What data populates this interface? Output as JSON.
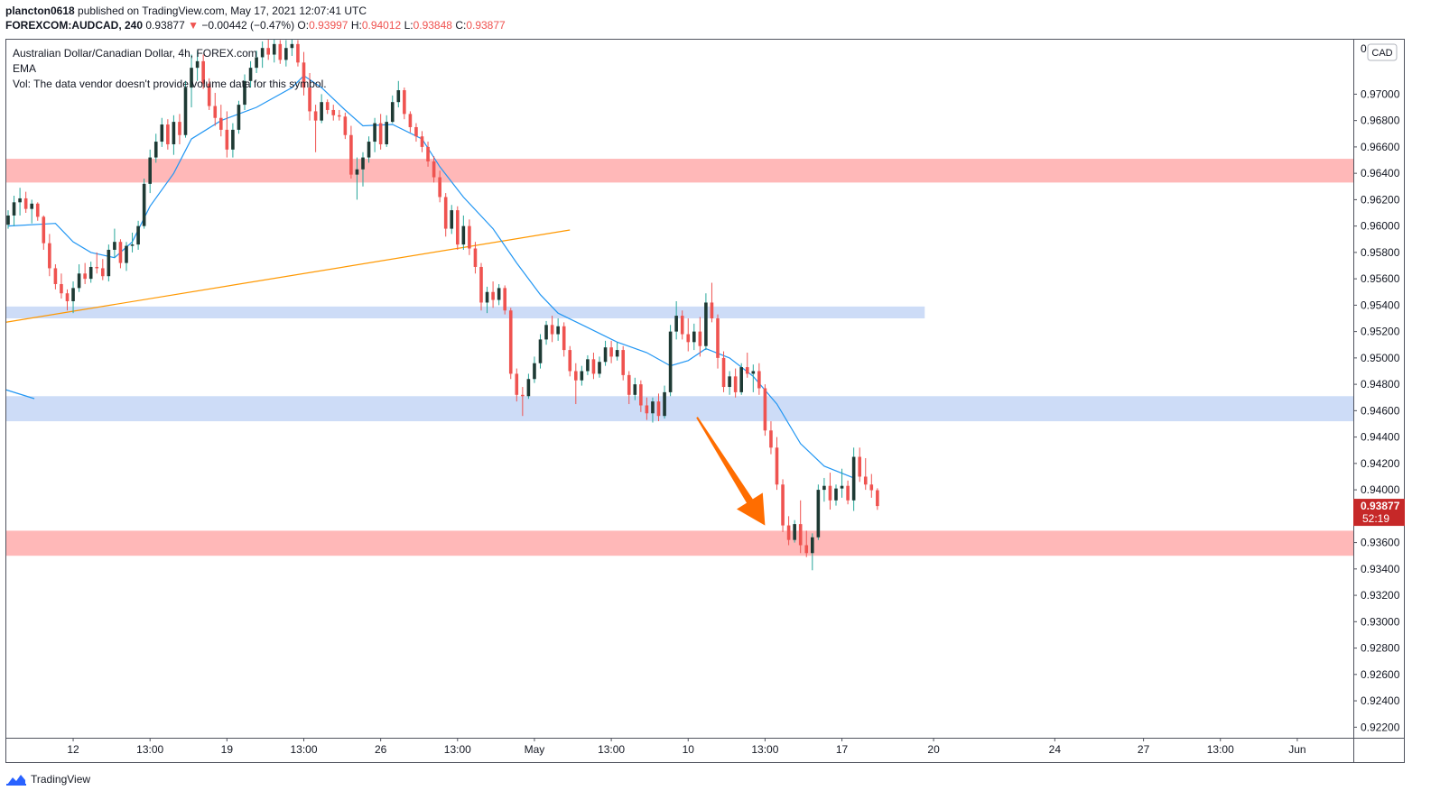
{
  "header": {
    "author": "plancton0618",
    "published_text": "published on TradingView.com, May 17, 2021 12:07:41 UTC",
    "symbol": "FOREXCOM:AUDCAD, 240",
    "last": "0.93877",
    "arrow": "▼",
    "change": "−0.00442 (−0.47%)",
    "o_label": "O:",
    "o_value": "0.93997",
    "h_label": "H:",
    "h_value": "0.94012",
    "l_label": "L:",
    "l_value": "0.93848",
    "c_label": "C:",
    "c_value": "0.93877"
  },
  "legend": {
    "title": "Australian Dollar/Canadian Dollar, 4h, FOREX.com",
    "ema": "EMA",
    "vol": "Vol: The data vendor doesn't provide volume data for this symbol."
  },
  "footer": {
    "brand": "TradingView"
  },
  "colors": {
    "up": "#26a69a",
    "down": "#ef5350",
    "wick_up": "#1e3a34",
    "ema": "#2196f3",
    "trendline": "#ff9800",
    "arrow": "#ff6d00",
    "red_zone": "#ffb8b8",
    "blue_zone": "#cddcf7",
    "price_badge": "#c62828"
  },
  "chart_data": {
    "type": "candlestick",
    "title": "Australian Dollar/Canadian Dollar, 4h, FOREX.com",
    "currency": "CAD",
    "ylim": [
      0.9212,
      0.9742
    ],
    "y_ticks": [
      "0.97000",
      "0.96800",
      "0.96600",
      "0.96400",
      "0.96200",
      "0.96000",
      "0.95800",
      "0.95600",
      "0.95400",
      "0.95200",
      "0.95000",
      "0.94800",
      "0.94600",
      "0.94400",
      "0.94200",
      "0.94000",
      "0.93600",
      "0.93400",
      "0.93200",
      "0.93000",
      "0.92800",
      "0.92600",
      "0.92400",
      "0.92200"
    ],
    "y_tick_values": [
      0.97,
      0.968,
      0.966,
      0.964,
      0.962,
      0.96,
      0.958,
      0.956,
      0.954,
      0.952,
      0.95,
      0.948,
      0.946,
      0.944,
      0.942,
      0.94,
      0.936,
      0.934,
      0.932,
      0.93,
      0.928,
      0.926,
      0.924,
      0.922
    ],
    "x_ticks": [
      {
        "label": "12",
        "bar": 11
      },
      {
        "label": "13:00",
        "bar": 24
      },
      {
        "label": "19",
        "bar": 37
      },
      {
        "label": "13:00",
        "bar": 50
      },
      {
        "label": "26",
        "bar": 63
      },
      {
        "label": "13:00",
        "bar": 76
      },
      {
        "label": "May",
        "bar": 89
      },
      {
        "label": "13:00",
        "bar": 102
      },
      {
        "label": "10",
        "bar": 115
      },
      {
        "label": "13:00",
        "bar": 128
      },
      {
        "label": "17",
        "bar": 141
      },
      {
        "label": "20",
        "bar": 156.5
      },
      {
        "label": "24",
        "bar": 177
      },
      {
        "label": "27",
        "bar": 192
      },
      {
        "label": "13:00",
        "bar": 205
      },
      {
        "label": "Jun",
        "bar": 218
      }
    ],
    "current_price": {
      "value": 0.93877,
      "label": "0.93877",
      "countdown": "52:19"
    },
    "zones": [
      {
        "type": "resistance",
        "from": 0.9633,
        "to": 0.9651,
        "color": "red",
        "x_end": "right"
      },
      {
        "type": "support",
        "from": 0.953,
        "to": 0.9539,
        "color": "blue",
        "x_end_bar": 155
      },
      {
        "type": "support",
        "from": 0.9452,
        "to": 0.9471,
        "color": "blue",
        "x_end": "right"
      },
      {
        "type": "support",
        "from": 0.935,
        "to": 0.9369,
        "color": "red",
        "x_end": "right"
      }
    ],
    "trendline": {
      "from": {
        "bar": 0,
        "price": 0.9527
      },
      "to": {
        "bar": 95,
        "price": 0.9597
      }
    },
    "arrow": {
      "from": {
        "bar": 116.5,
        "price": 0.9455
      },
      "to": {
        "bar": 128,
        "price": 0.9373
      }
    },
    "ema_points": [
      [
        0,
        0.96
      ],
      [
        8,
        0.9602
      ],
      [
        11,
        0.9588
      ],
      [
        14,
        0.958
      ],
      [
        18,
        0.9576
      ],
      [
        21,
        0.9588
      ],
      [
        24,
        0.9615
      ],
      [
        28,
        0.964
      ],
      [
        31,
        0.9666
      ],
      [
        36,
        0.968
      ],
      [
        42,
        0.969
      ],
      [
        48,
        0.9705
      ],
      [
        50,
        0.9714
      ],
      [
        53,
        0.9705
      ],
      [
        57,
        0.9688
      ],
      [
        60,
        0.9676
      ],
      [
        65,
        0.9677
      ],
      [
        70,
        0.9666
      ],
      [
        73,
        0.9645
      ],
      [
        77,
        0.9622
      ],
      [
        82,
        0.9598
      ],
      [
        86,
        0.9572
      ],
      [
        90,
        0.9548
      ],
      [
        93,
        0.9534
      ],
      [
        98,
        0.9523
      ],
      [
        103,
        0.9512
      ],
      [
        108,
        0.9504
      ],
      [
        112,
        0.9494
      ],
      [
        115,
        0.9498
      ],
      [
        118,
        0.9507
      ],
      [
        122,
        0.95
      ],
      [
        126,
        0.9486
      ],
      [
        130,
        0.9465
      ],
      [
        134,
        0.9435
      ],
      [
        138,
        0.9418
      ],
      [
        143,
        0.9409
      ]
    ],
    "candles": [
      [
        0.9601,
        0.9612,
        0.9598,
        0.9608
      ],
      [
        0.9608,
        0.9623,
        0.96,
        0.9618
      ],
      [
        0.9618,
        0.9629,
        0.9608,
        0.9621
      ],
      [
        0.9621,
        0.9626,
        0.961,
        0.9613
      ],
      [
        0.9613,
        0.962,
        0.9602,
        0.9617
      ],
      [
        0.9617,
        0.9618,
        0.9604,
        0.9607
      ],
      [
        0.9607,
        0.9608,
        0.9582,
        0.9587
      ],
      [
        0.9587,
        0.9594,
        0.9562,
        0.9568
      ],
      [
        0.9568,
        0.9571,
        0.9552,
        0.9556
      ],
      [
        0.9556,
        0.9564,
        0.9545,
        0.9549
      ],
      [
        0.9549,
        0.9552,
        0.9536,
        0.9543
      ],
      [
        0.9543,
        0.9558,
        0.9534,
        0.9553
      ],
      [
        0.9553,
        0.9571,
        0.955,
        0.9564
      ],
      [
        0.9564,
        0.9572,
        0.9556,
        0.956
      ],
      [
        0.956,
        0.9573,
        0.9557,
        0.9569
      ],
      [
        0.9569,
        0.958,
        0.9564,
        0.9568
      ],
      [
        0.9568,
        0.9575,
        0.9559,
        0.9562
      ],
      [
        0.9562,
        0.9586,
        0.9558,
        0.9582
      ],
      [
        0.9582,
        0.9598,
        0.9576,
        0.9588
      ],
      [
        0.9588,
        0.959,
        0.9568,
        0.9572
      ],
      [
        0.9572,
        0.9588,
        0.9566,
        0.9585
      ],
      [
        0.9585,
        0.9595,
        0.958,
        0.9586
      ],
      [
        0.9586,
        0.9604,
        0.9582,
        0.96
      ],
      [
        0.96,
        0.9636,
        0.9598,
        0.9632
      ],
      [
        0.9632,
        0.9658,
        0.9625,
        0.9652
      ],
      [
        0.9652,
        0.967,
        0.9648,
        0.9664
      ],
      [
        0.9664,
        0.9682,
        0.966,
        0.9677
      ],
      [
        0.9677,
        0.9681,
        0.9658,
        0.9662
      ],
      [
        0.9662,
        0.9684,
        0.9654,
        0.9679
      ],
      [
        0.9679,
        0.9685,
        0.9662,
        0.9669
      ],
      [
        0.9669,
        0.971,
        0.9667,
        0.9705
      ],
      [
        0.9705,
        0.973,
        0.969,
        0.972
      ],
      [
        0.972,
        0.9733,
        0.971,
        0.9725
      ],
      [
        0.9725,
        0.973,
        0.9704,
        0.9708
      ],
      [
        0.9708,
        0.9712,
        0.9688,
        0.9691
      ],
      [
        0.9691,
        0.9701,
        0.9676,
        0.9682
      ],
      [
        0.9682,
        0.9692,
        0.9668,
        0.9673
      ],
      [
        0.9673,
        0.9687,
        0.9652,
        0.9658
      ],
      [
        0.9658,
        0.9678,
        0.9652,
        0.9673
      ],
      [
        0.9673,
        0.9695,
        0.967,
        0.9692
      ],
      [
        0.9692,
        0.9715,
        0.9688,
        0.971
      ],
      [
        0.971,
        0.9725,
        0.9705,
        0.972
      ],
      [
        0.972,
        0.9733,
        0.9716,
        0.9728
      ],
      [
        0.9728,
        0.974,
        0.972,
        0.9735
      ],
      [
        0.9735,
        0.9742,
        0.9726,
        0.973
      ],
      [
        0.973,
        0.9742,
        0.9724,
        0.9738
      ],
      [
        0.9738,
        0.9741,
        0.9723,
        0.9726
      ],
      [
        0.9726,
        0.9741,
        0.9721,
        0.9735
      ],
      [
        0.9735,
        0.9742,
        0.9729,
        0.9738
      ],
      [
        0.9738,
        0.9741,
        0.9721,
        0.9724
      ],
      [
        0.9724,
        0.9732,
        0.9699,
        0.9705
      ],
      [
        0.9705,
        0.9716,
        0.968,
        0.9687
      ],
      [
        0.9687,
        0.9692,
        0.9656,
        0.968
      ],
      [
        0.968,
        0.97,
        0.9678,
        0.9694
      ],
      [
        0.9694,
        0.9696,
        0.9685,
        0.9688
      ],
      [
        0.9688,
        0.9692,
        0.968,
        0.9684
      ],
      [
        0.9684,
        0.9688,
        0.968,
        0.9683
      ],
      [
        0.9683,
        0.9686,
        0.9666,
        0.9669
      ],
      [
        0.9669,
        0.9676,
        0.9636,
        0.9639
      ],
      [
        0.9639,
        0.9652,
        0.962,
        0.9643
      ],
      [
        0.9643,
        0.9656,
        0.963,
        0.9652
      ],
      [
        0.9652,
        0.9668,
        0.9648,
        0.9664
      ],
      [
        0.9664,
        0.9682,
        0.9656,
        0.9678
      ],
      [
        0.9678,
        0.9685,
        0.9658,
        0.9662
      ],
      [
        0.9662,
        0.9684,
        0.966,
        0.9679
      ],
      [
        0.9679,
        0.9699,
        0.9678,
        0.9694
      ],
      [
        0.9694,
        0.971,
        0.969,
        0.9703
      ],
      [
        0.9703,
        0.9705,
        0.9681,
        0.9685
      ],
      [
        0.9685,
        0.9687,
        0.9671,
        0.9675
      ],
      [
        0.9675,
        0.9678,
        0.9664,
        0.9668
      ],
      [
        0.9668,
        0.9672,
        0.9656,
        0.966
      ],
      [
        0.966,
        0.9664,
        0.9645,
        0.9649
      ],
      [
        0.9649,
        0.9653,
        0.9633,
        0.9637
      ],
      [
        0.9637,
        0.9642,
        0.9618,
        0.9622
      ],
      [
        0.9622,
        0.9625,
        0.9592,
        0.9598
      ],
      [
        0.9598,
        0.9616,
        0.9594,
        0.9612
      ],
      [
        0.9612,
        0.9615,
        0.9582,
        0.9586
      ],
      [
        0.9586,
        0.9608,
        0.9582,
        0.96
      ],
      [
        0.96,
        0.9605,
        0.9578,
        0.9583
      ],
      [
        0.9583,
        0.9588,
        0.9564,
        0.9569
      ],
      [
        0.9569,
        0.9572,
        0.9536,
        0.9542
      ],
      [
        0.9542,
        0.9554,
        0.9534,
        0.955
      ],
      [
        0.955,
        0.9558,
        0.9538,
        0.9544
      ],
      [
        0.9544,
        0.9556,
        0.954,
        0.9553
      ],
      [
        0.9553,
        0.9555,
        0.9533,
        0.9536
      ],
      [
        0.9536,
        0.9538,
        0.9484,
        0.9488
      ],
      [
        0.9488,
        0.9492,
        0.9467,
        0.9472
      ],
      [
        0.9472,
        0.9478,
        0.9456,
        0.9471
      ],
      [
        0.9471,
        0.9488,
        0.9469,
        0.9484
      ],
      [
        0.9484,
        0.9501,
        0.9481,
        0.9496
      ],
      [
        0.9496,
        0.9518,
        0.9492,
        0.9514
      ],
      [
        0.9514,
        0.9528,
        0.951,
        0.9525
      ],
      [
        0.9525,
        0.9532,
        0.9512,
        0.9518
      ],
      [
        0.9518,
        0.953,
        0.9513,
        0.9524
      ],
      [
        0.9524,
        0.9527,
        0.9501,
        0.9506
      ],
      [
        0.9506,
        0.9509,
        0.9486,
        0.949
      ],
      [
        0.949,
        0.9496,
        0.9465,
        0.9483
      ],
      [
        0.9483,
        0.9494,
        0.9479,
        0.949
      ],
      [
        0.949,
        0.9502,
        0.9487,
        0.9499
      ],
      [
        0.9499,
        0.9504,
        0.9484,
        0.9488
      ],
      [
        0.9488,
        0.9501,
        0.9485,
        0.9497
      ],
      [
        0.9497,
        0.9513,
        0.9494,
        0.9508
      ],
      [
        0.9508,
        0.9513,
        0.9496,
        0.9501
      ],
      [
        0.9501,
        0.9512,
        0.9498,
        0.9506
      ],
      [
        0.9506,
        0.9509,
        0.9483,
        0.9487
      ],
      [
        0.9487,
        0.949,
        0.9465,
        0.9472
      ],
      [
        0.9472,
        0.9485,
        0.9468,
        0.948
      ],
      [
        0.948,
        0.9483,
        0.9459,
        0.9464
      ],
      [
        0.9464,
        0.947,
        0.9453,
        0.9458
      ],
      [
        0.9458,
        0.947,
        0.9451,
        0.9467
      ],
      [
        0.9467,
        0.9473,
        0.9452,
        0.9456
      ],
      [
        0.9456,
        0.9479,
        0.9454,
        0.9474
      ],
      [
        0.9474,
        0.9525,
        0.9471,
        0.952
      ],
      [
        0.952,
        0.9543,
        0.9514,
        0.9532
      ],
      [
        0.9532,
        0.9536,
        0.9514,
        0.9518
      ],
      [
        0.9518,
        0.953,
        0.9505,
        0.9512
      ],
      [
        0.9512,
        0.9526,
        0.9506,
        0.952
      ],
      [
        0.952,
        0.9531,
        0.9501,
        0.9509
      ],
      [
        0.9509,
        0.9549,
        0.9506,
        0.9542
      ],
      [
        0.9542,
        0.9557,
        0.9527,
        0.953
      ],
      [
        0.953,
        0.9533,
        0.9492,
        0.95
      ],
      [
        0.95,
        0.9505,
        0.9474,
        0.9478
      ],
      [
        0.9478,
        0.949,
        0.9472,
        0.9486
      ],
      [
        0.9486,
        0.9492,
        0.947,
        0.9474
      ],
      [
        0.9474,
        0.9496,
        0.9472,
        0.9493
      ],
      [
        0.9493,
        0.9504,
        0.9485,
        0.9488
      ],
      [
        0.9488,
        0.9495,
        0.9474,
        0.949
      ],
      [
        0.949,
        0.9496,
        0.9472,
        0.9477
      ],
      [
        0.9477,
        0.948,
        0.9441,
        0.9445
      ],
      [
        0.9445,
        0.9452,
        0.9427,
        0.9432
      ],
      [
        0.9432,
        0.944,
        0.94,
        0.9404
      ],
      [
        0.9404,
        0.9408,
        0.9368,
        0.9373
      ],
      [
        0.9373,
        0.938,
        0.9358,
        0.9362
      ],
      [
        0.9362,
        0.9377,
        0.936,
        0.9374
      ],
      [
        0.9374,
        0.9392,
        0.9352,
        0.9358
      ],
      [
        0.9358,
        0.9369,
        0.9349,
        0.9352
      ],
      [
        0.9352,
        0.9367,
        0.9339,
        0.9364
      ],
      [
        0.9364,
        0.9404,
        0.9362,
        0.94
      ],
      [
        0.94,
        0.9409,
        0.9391,
        0.9403
      ],
      [
        0.9403,
        0.9413,
        0.9385,
        0.9392
      ],
      [
        0.9392,
        0.9404,
        0.9388,
        0.9401
      ],
      [
        0.9401,
        0.9416,
        0.9394,
        0.9403
      ],
      [
        0.9403,
        0.9407,
        0.9389,
        0.9392
      ],
      [
        0.9392,
        0.9432,
        0.9384,
        0.9425
      ],
      [
        0.9425,
        0.9432,
        0.9406,
        0.941
      ],
      [
        0.941,
        0.9424,
        0.94,
        0.9404
      ],
      [
        0.9404,
        0.9412,
        0.9394,
        0.93997
      ],
      [
        0.93997,
        0.94012,
        0.93848,
        0.93877
      ]
    ]
  }
}
